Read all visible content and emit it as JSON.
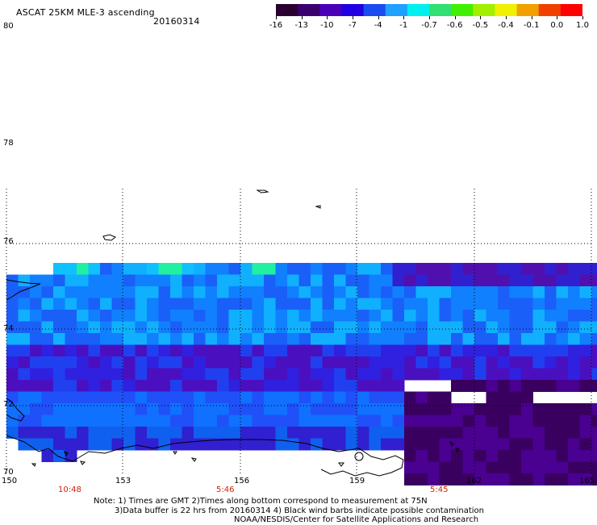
{
  "header": {
    "title": "ASCAT 25KM MLE-3 ascending",
    "date": "20160314"
  },
  "colorbar": {
    "ticks": [
      "-16",
      "-13",
      "-10",
      "-7",
      "-4",
      "-1",
      "-0.7",
      "-0.6",
      "-0.5",
      "-0.4",
      "-0.1",
      "0.0",
      "1.0"
    ],
    "colors": [
      "#2a0030",
      "#3a0070",
      "#4a00b8",
      "#2000e0",
      "#1a4cf0",
      "#20a0ff",
      "#00f0f0",
      "#30e070",
      "#40f000",
      "#a0f000",
      "#f0f000",
      "#f0a000",
      "#f04000",
      "#ff0000"
    ]
  },
  "map": {
    "y_labels": [
      "80",
      "78",
      "76",
      "74",
      "72",
      "70"
    ],
    "x_labels": [
      "150",
      "153",
      "156",
      "159",
      "162",
      "165"
    ],
    "time_labels": [
      "10:48",
      "5:46",
      "5:45"
    ],
    "coastline_color": "#000000"
  },
  "notes": {
    "line1": "Note: 1) Times are GMT 2)Times along bottom correspond to measurement at 75N",
    "line2": "3)Data buffer is 22 hrs from 20160314 4) Black wind barbs indicate possible contamination",
    "line3": "NOAA/NESDIS/Center for Satellite Applications and Research"
  }
}
